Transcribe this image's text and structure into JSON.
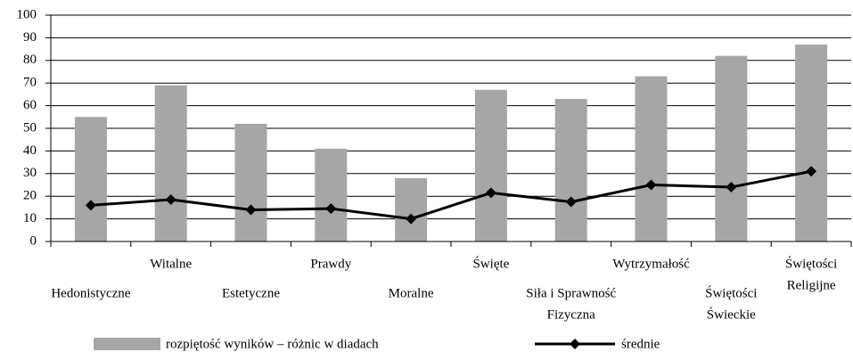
{
  "chart_data": {
    "type": "bar-line",
    "categories": [
      [
        "Hedonistyczne"
      ],
      [
        "Witalne"
      ],
      [
        "Estetyczne"
      ],
      [
        "Prawdy"
      ],
      [
        "Moralne"
      ],
      [
        "Święte"
      ],
      [
        "Siła i Sprawność",
        "Fizyczna"
      ],
      [
        "Wytrzymałość"
      ],
      [
        "Świętości",
        "Świeckie"
      ],
      [
        "Świętości",
        "Religijne"
      ]
    ],
    "series": [
      {
        "name": "rozpiętość wyników – różnic w diadach",
        "type": "bar",
        "color": "#a6a6a6",
        "values": [
          55,
          69,
          52,
          41,
          28,
          67,
          63,
          73,
          82,
          87
        ]
      },
      {
        "name": "średnie",
        "type": "line",
        "color": "#000000",
        "values": [
          16,
          18.5,
          14,
          14.5,
          10,
          21.5,
          17.5,
          25,
          24,
          31
        ]
      }
    ],
    "ylim": [
      0,
      100
    ],
    "yticks": [
      0,
      10,
      20,
      30,
      40,
      50,
      60,
      70,
      80,
      90,
      100
    ],
    "grid": true,
    "legend": "bottom"
  }
}
